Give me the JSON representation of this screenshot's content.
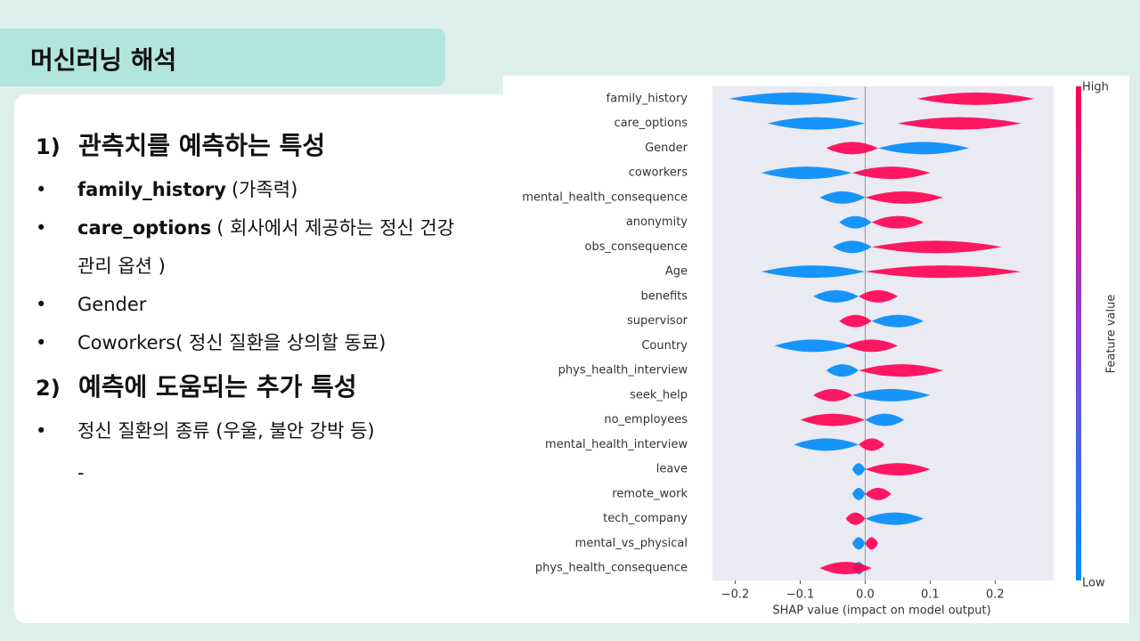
{
  "slide": {
    "title": "머신러닝 해석",
    "sections": [
      {
        "number": "1)",
        "heading": "관측치를 예측하는 특성",
        "bullets": [
          {
            "term": "family_history",
            "text": "(가족력)"
          },
          {
            "term": "care_options",
            "text": "( 회사에서 제공하는 정신 건강 관리 옵션 )"
          },
          {
            "text": "Gender"
          },
          {
            "text": "Coworkers( 정신 질환을 상의할 동료)"
          }
        ]
      },
      {
        "number": "2)",
        "heading": "예측에 도움되는 추가 특성",
        "bullets": [
          {
            "text": "정신 질환의 종류 (우울, 불안 강박 등)"
          }
        ],
        "note": "-"
      }
    ]
  },
  "chart_data": {
    "type": "violin",
    "xlabel": "SHAP value (impact on model output)",
    "colorbar": {
      "high": "High",
      "low": "Low",
      "label": "Feature value",
      "high_color": "#ff0052",
      "low_color": "#008bfb"
    },
    "categories": [
      "family_history",
      "care_options",
      "Gender",
      "coworkers",
      "mental_health_consequence",
      "anonymity",
      "obs_consequence",
      "Age",
      "benefits",
      "supervisor",
      "Country",
      "phys_health_interview",
      "seek_help",
      "no_employees",
      "mental_health_interview",
      "leave",
      "remote_work",
      "tech_company",
      "mental_vs_physical",
      "phys_health_consequence"
    ],
    "low_values": [
      [
        -0.21,
        -0.01
      ],
      [
        -0.15,
        0.0
      ],
      [
        0.02,
        0.16
      ],
      [
        -0.16,
        -0.02
      ],
      [
        -0.07,
        0.0
      ],
      [
        -0.04,
        0.01
      ],
      [
        -0.05,
        0.01
      ],
      [
        -0.16,
        0.0
      ],
      [
        -0.08,
        -0.01
      ],
      [
        0.01,
        0.09
      ],
      [
        -0.14,
        -0.02
      ],
      [
        -0.06,
        -0.01
      ],
      [
        -0.02,
        0.1
      ],
      [
        0.0,
        0.06
      ],
      [
        -0.11,
        -0.01
      ],
      [
        -0.02,
        0.0
      ],
      [
        -0.02,
        0.0
      ],
      [
        0.0,
        0.09
      ],
      [
        -0.02,
        0.0
      ],
      [
        -0.02,
        0.0
      ]
    ],
    "high_values": [
      [
        0.08,
        0.26
      ],
      [
        0.05,
        0.24
      ],
      [
        -0.06,
        0.02
      ],
      [
        -0.02,
        0.1
      ],
      [
        0.0,
        0.12
      ],
      [
        0.01,
        0.09
      ],
      [
        0.01,
        0.21
      ],
      [
        0.0,
        0.24
      ],
      [
        -0.01,
        0.05
      ],
      [
        -0.04,
        0.01
      ],
      [
        -0.03,
        0.05
      ],
      [
        -0.01,
        0.12
      ],
      [
        -0.08,
        -0.02
      ],
      [
        -0.1,
        0.0
      ],
      [
        -0.01,
        0.03
      ],
      [
        0.0,
        0.1
      ],
      [
        0.0,
        0.04
      ],
      [
        -0.03,
        0.0
      ],
      [
        0.0,
        0.02
      ],
      [
        -0.07,
        0.01
      ]
    ],
    "xlim": [
      -0.235,
      0.29
    ],
    "xticks": [
      {
        "value": -0.2,
        "label": "−0.2"
      },
      {
        "value": -0.1,
        "label": "−0.1"
      },
      {
        "value": 0,
        "label": "0.0"
      },
      0.1,
      0.2
    ]
  }
}
